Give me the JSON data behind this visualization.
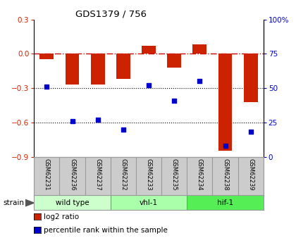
{
  "title": "GDS1379 / 756",
  "samples": [
    "GSM62231",
    "GSM62236",
    "GSM62237",
    "GSM62232",
    "GSM62233",
    "GSM62235",
    "GSM62234",
    "GSM62238",
    "GSM62239"
  ],
  "log2_ratio": [
    -0.05,
    -0.27,
    -0.27,
    -0.22,
    0.07,
    -0.12,
    0.08,
    -0.85,
    -0.42
  ],
  "percentile_rank": [
    51,
    26,
    27,
    20,
    52,
    41,
    55,
    8,
    18
  ],
  "ylim_left": [
    -0.9,
    0.3
  ],
  "ylim_right": [
    0,
    100
  ],
  "yticks_left": [
    -0.9,
    -0.6,
    -0.3,
    0.0,
    0.3
  ],
  "yticks_right": [
    0,
    25,
    50,
    75,
    100
  ],
  "ytick_labels_right": [
    "0",
    "25",
    "50",
    "75",
    "100%"
  ],
  "groups": [
    {
      "label": "wild type",
      "start": 0,
      "end": 3,
      "color": "#ccffcc"
    },
    {
      "label": "vhl-1",
      "start": 3,
      "end": 6,
      "color": "#aaffaa"
    },
    {
      "label": "hif-1",
      "start": 6,
      "end": 9,
      "color": "#55ee55"
    }
  ],
  "bar_color": "#cc2200",
  "dot_color": "#0000cc",
  "hline_color": "#cc0000",
  "dotted_color": "#000000",
  "bg_color": "#ffffff",
  "plot_bg": "#ffffff",
  "bar_width": 0.55,
  "strain_label": "strain",
  "legend_bar_label": "log2 ratio",
  "legend_dot_label": "percentile rank within the sample",
  "label_bg": "#cccccc",
  "label_border": "#999999"
}
